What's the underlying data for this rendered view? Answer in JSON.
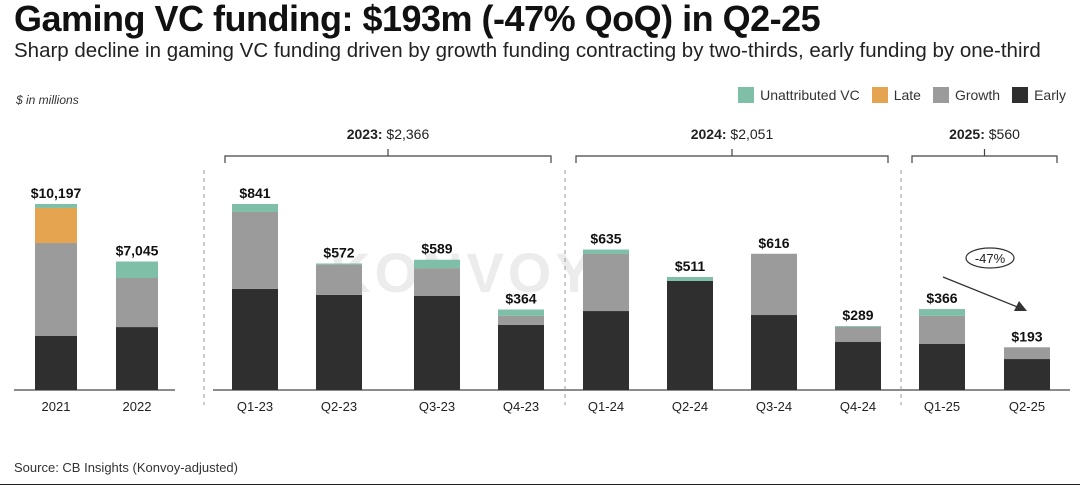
{
  "title": "Gaming VC funding: $193m (-47% QoQ) in Q2-25",
  "subtitle": "Sharp decline in gaming VC funding driven by growth funding contracting by two-thirds, early funding by one-third",
  "units": "$ in millions",
  "source": "Source: CB Insights (Konvoy-adjusted)",
  "watermark": "KONVOY",
  "legend": [
    {
      "name": "Unattributed VC",
      "color": "#7fbfa8"
    },
    {
      "name": "Late",
      "color": "#e5a550"
    },
    {
      "name": "Growth",
      "color": "#9b9b9b"
    },
    {
      "name": "Early",
      "color": "#2f2f2f"
    }
  ],
  "chart_data": [
    {
      "type": "bar",
      "stacked": true,
      "title": "Annual",
      "categories": [
        "2021",
        "2022"
      ],
      "totals_labels": [
        "$10,197",
        "$7,045"
      ],
      "totals": [
        10197,
        7045
      ],
      "series": [
        {
          "name": "Early",
          "values": [
            2960,
            3450
          ]
        },
        {
          "name": "Growth",
          "values": [
            5100,
            2690
          ]
        },
        {
          "name": "Late",
          "values": [
            1920,
            0
          ]
        },
        {
          "name": "Unattributed VC",
          "values": [
            217,
            905
          ]
        }
      ],
      "ylim": [
        0,
        10197
      ]
    },
    {
      "type": "bar",
      "stacked": true,
      "title": "Quarterly",
      "categories": [
        "Q1-23",
        "Q2-23",
        "Q3-23",
        "Q4-23",
        "Q1-24",
        "Q2-24",
        "Q3-24",
        "Q4-24",
        "Q1-25",
        "Q2-25"
      ],
      "totals_labels": [
        "$841",
        "$572",
        "$589",
        "$364",
        "$635",
        "$511",
        "$616",
        "$289",
        "$366",
        "$193"
      ],
      "totals": [
        841,
        572,
        589,
        364,
        635,
        511,
        616,
        289,
        366,
        193
      ],
      "series": [
        {
          "name": "Early",
          "values": [
            457,
            430,
            425,
            294,
            357,
            493,
            339,
            217,
            208,
            140
          ]
        },
        {
          "name": "Growth",
          "values": [
            348,
            137,
            126,
            41,
            258,
            0,
            277,
            68,
            127,
            53
          ]
        },
        {
          "name": "Late",
          "values": [
            0,
            0,
            0,
            0,
            0,
            0,
            0,
            0,
            0,
            0
          ]
        },
        {
          "name": "Unattributed VC",
          "values": [
            36,
            5,
            38,
            29,
            20,
            18,
            0,
            4,
            31,
            0
          ]
        }
      ],
      "ylim": [
        0,
        841
      ],
      "year_groups": [
        {
          "year": "2023:",
          "total": "$2,366",
          "from": 0,
          "to": 3
        },
        {
          "year": "2024:",
          "total": "$2,051",
          "from": 4,
          "to": 7
        },
        {
          "year": "2025:",
          "total": "$560",
          "from": 8,
          "to": 9
        }
      ],
      "annotation": {
        "text": "-47%",
        "from": "Q1-25",
        "to": "Q2-25"
      }
    }
  ]
}
